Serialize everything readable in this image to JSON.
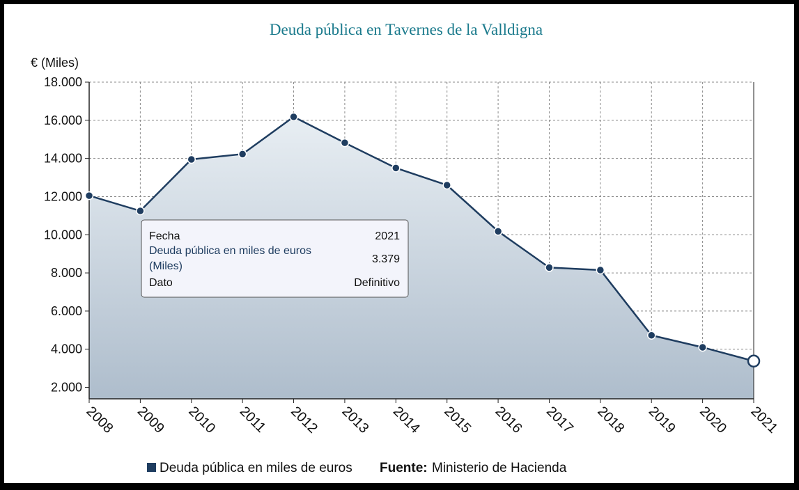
{
  "chart_data": {
    "type": "area",
    "title": "Deuda pública en Tavernes de la Valldigna",
    "ylabel": "€ (Miles)",
    "xlabel": "",
    "x": [
      "2008",
      "2009",
      "2010",
      "2011",
      "2012",
      "2013",
      "2014",
      "2015",
      "2016",
      "2017",
      "2018",
      "2019",
      "2020",
      "2021"
    ],
    "series": [
      {
        "name": "Deuda pública en miles de euros",
        "values": [
          12050,
          11250,
          13950,
          14230,
          16180,
          14820,
          13500,
          12600,
          10180,
          8280,
          8150,
          4730,
          4100,
          3379
        ]
      }
    ],
    "ylim": [
      2000,
      18000
    ],
    "yticks": [
      2000,
      4000,
      6000,
      8000,
      10000,
      12000,
      14000,
      16000,
      18000
    ],
    "ytick_labels": [
      "2.000",
      "4.000",
      "6.000",
      "8.000",
      "10.000",
      "12.000",
      "14.000",
      "16.000",
      "18.000"
    ],
    "grid": true,
    "legend_position": "bottom",
    "source_label": "Fuente:",
    "source": "Ministerio de Hacienda",
    "tooltip": {
      "rows": [
        {
          "label": "Fecha",
          "value": "2021"
        },
        {
          "label": "Deuda pública en miles de euros",
          "label_line2": "(Miles)",
          "value": "3.379"
        },
        {
          "label": "Dato",
          "value": "Definitivo"
        }
      ]
    },
    "colors": {
      "line": "#1f3d60",
      "area_top": "#e8eef3",
      "area_bottom": "#aebdcc",
      "title": "#1a7a8c"
    }
  }
}
